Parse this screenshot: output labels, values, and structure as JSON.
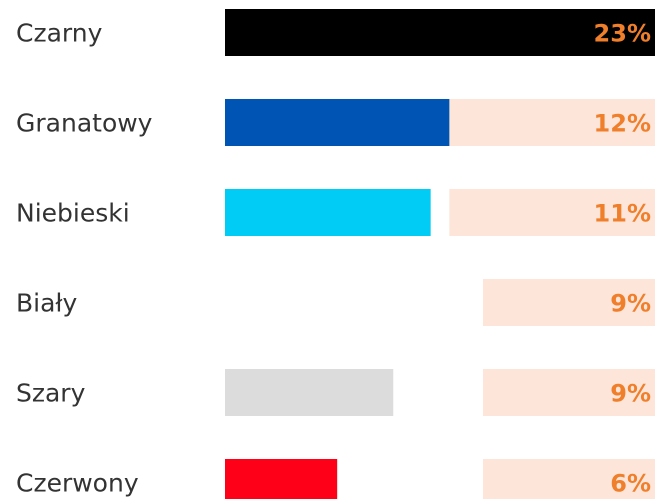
{
  "chart_data": {
    "type": "bar",
    "orientation": "horizontal",
    "categories": [
      "Czarny",
      "Granatowy",
      "Niebieski",
      "Biały",
      "Szary",
      "Czerwony"
    ],
    "values": [
      23,
      12,
      11,
      9,
      9,
      6
    ],
    "value_labels": [
      "23%",
      "12%",
      "11%",
      "9%",
      "9%",
      "6%"
    ],
    "unit": "%",
    "xlim": [
      0,
      23
    ],
    "bar_colors": [
      "#000000",
      "#0054B4",
      "#00CCF5",
      "#FFFFFF",
      "#DCDCDC",
      "#FF0019"
    ],
    "track_color": "#FDE5D9",
    "value_label_color": "#F07F2B",
    "title": "",
    "xlabel": "",
    "ylabel": "",
    "grid": false,
    "legend": false
  }
}
